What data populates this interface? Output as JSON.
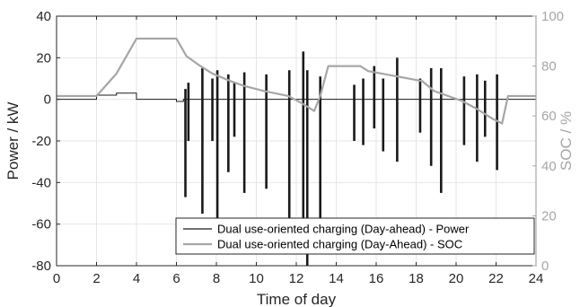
{
  "chart_data": {
    "type": "line",
    "xlabel": "Time of day",
    "ylabel_left": "Power / kW",
    "ylabel_right": "SOC / %",
    "xlim": [
      0,
      24
    ],
    "ylim_left": [
      -80,
      40
    ],
    "ylim_right": [
      0,
      100
    ],
    "x_ticks": [
      "0",
      "2",
      "4",
      "6",
      "8",
      "10",
      "12",
      "14",
      "16",
      "18",
      "20",
      "22",
      "24"
    ],
    "y_left_ticks": [
      "40",
      "20",
      "0",
      "-20",
      "-40",
      "-60",
      "-80"
    ],
    "y_right_ticks": [
      "100",
      "80",
      "60",
      "40",
      "20",
      "0"
    ],
    "grid": true,
    "legend_position": "bottom-right",
    "colors": {
      "power": "#1a1a1a",
      "soc": "#a6a6a6",
      "right_axis": "#a6a6a6"
    },
    "series": [
      {
        "name": "Dual use-oriented charging (Day-ahead) - Power",
        "axis": "left",
        "x": [
          0,
          2,
          2,
          3,
          3,
          4,
          4,
          6,
          6,
          6.35,
          6.35,
          24
        ],
        "y": [
          0,
          0,
          2,
          2,
          3,
          3,
          0,
          0,
          -1,
          -1,
          0,
          0
        ],
        "pulses": [
          {
            "x": 6.45,
            "min": -47,
            "max": 5
          },
          {
            "x": 6.6,
            "min": -20,
            "max": 8
          },
          {
            "x": 7.3,
            "min": -55,
            "max": 15
          },
          {
            "x": 7.8,
            "min": -20,
            "max": 10
          },
          {
            "x": 8.05,
            "min": -58,
            "max": 14
          },
          {
            "x": 8.6,
            "min": -35,
            "max": 12
          },
          {
            "x": 8.9,
            "min": -18,
            "max": 8
          },
          {
            "x": 9.4,
            "min": -45,
            "max": 13
          },
          {
            "x": 10.5,
            "min": -43,
            "max": 12
          },
          {
            "x": 11.65,
            "min": -57,
            "max": 14
          },
          {
            "x": 12.35,
            "min": -62,
            "max": 23
          },
          {
            "x": 12.55,
            "min": -80,
            "max": 14
          },
          {
            "x": 13.2,
            "min": -65,
            "max": 11
          },
          {
            "x": 14.9,
            "min": -20,
            "max": 7
          },
          {
            "x": 15.35,
            "min": -22,
            "max": 10
          },
          {
            "x": 15.9,
            "min": -14,
            "max": 16
          },
          {
            "x": 16.35,
            "min": -25,
            "max": 10
          },
          {
            "x": 17.05,
            "min": -30,
            "max": 20
          },
          {
            "x": 18.2,
            "min": -16,
            "max": 10
          },
          {
            "x": 18.75,
            "min": -32,
            "max": 15
          },
          {
            "x": 19.25,
            "min": -45,
            "max": 15
          },
          {
            "x": 20.4,
            "min": -22,
            "max": 11
          },
          {
            "x": 21.05,
            "min": -30,
            "max": 12
          },
          {
            "x": 21.45,
            "min": -18,
            "max": 9
          },
          {
            "x": 22.05,
            "min": -34,
            "max": 12
          }
        ]
      },
      {
        "name": "Dual use-oriented charging (Day-Ahead) - SOC",
        "axis": "right",
        "x": [
          0,
          2,
          3,
          4,
          6,
          6.5,
          7.2,
          7.8,
          8.7,
          9.4,
          10.4,
          11.6,
          12.3,
          12.9,
          13.2,
          13.6,
          15.2,
          15.6,
          18.3,
          18.9,
          20.3,
          21.0,
          21.8,
          22.3,
          22.6,
          24
        ],
        "y": [
          68,
          68,
          77,
          91,
          91,
          84,
          80,
          77,
          74,
          72,
          70,
          68,
          65,
          62,
          68,
          80,
          80,
          78,
          74,
          70,
          66,
          63,
          59,
          57,
          68,
          68
        ]
      }
    ]
  }
}
